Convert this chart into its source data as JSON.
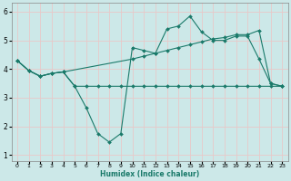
{
  "bg_color": "#cce8e8",
  "grid_color": "#b0d8d8",
  "line_color": "#1a7a6a",
  "xlabel": "Humidex (Indice chaleur)",
  "xlim": [
    -0.5,
    23.5
  ],
  "ylim": [
    0.8,
    6.3
  ],
  "xticks": [
    0,
    1,
    2,
    3,
    4,
    5,
    6,
    7,
    8,
    9,
    10,
    11,
    12,
    13,
    14,
    15,
    16,
    17,
    18,
    19,
    20,
    21,
    22,
    23
  ],
  "yticks": [
    1,
    2,
    3,
    4,
    5,
    6
  ],
  "curve_jagged_x": [
    0,
    1,
    2,
    3,
    4,
    5,
    6,
    7,
    8,
    9,
    10,
    11,
    12,
    13,
    14,
    15,
    16,
    17,
    18,
    19,
    20,
    21,
    22,
    23
  ],
  "curve_jagged_y": [
    4.3,
    3.95,
    3.75,
    3.85,
    3.9,
    3.4,
    2.65,
    1.75,
    1.45,
    1.75,
    4.75,
    4.65,
    4.55,
    5.4,
    5.5,
    5.85,
    5.3,
    5.0,
    5.0,
    5.15,
    5.15,
    4.35,
    3.5,
    3.4
  ],
  "curve_flat_x": [
    0,
    1,
    2,
    3,
    4,
    5,
    6,
    7,
    8,
    9,
    10,
    11,
    12,
    13,
    14,
    15,
    16,
    17,
    18,
    19,
    20,
    21,
    22,
    23
  ],
  "curve_flat_y": [
    4.3,
    3.95,
    3.75,
    3.85,
    3.9,
    3.4,
    3.4,
    3.4,
    3.4,
    3.4,
    3.4,
    3.4,
    3.4,
    3.4,
    3.4,
    3.4,
    3.4,
    3.4,
    3.4,
    3.4,
    3.4,
    3.4,
    3.4,
    3.4
  ],
  "curve_rise_x": [
    0,
    1,
    2,
    3,
    4,
    10,
    11,
    12,
    13,
    14,
    15,
    16,
    17,
    18,
    19,
    20,
    21,
    22,
    23
  ],
  "curve_rise_y": [
    4.3,
    3.95,
    3.75,
    3.85,
    3.9,
    4.35,
    4.45,
    4.55,
    4.65,
    4.75,
    4.85,
    4.95,
    5.05,
    5.1,
    5.2,
    5.2,
    5.35,
    3.5,
    3.4
  ]
}
